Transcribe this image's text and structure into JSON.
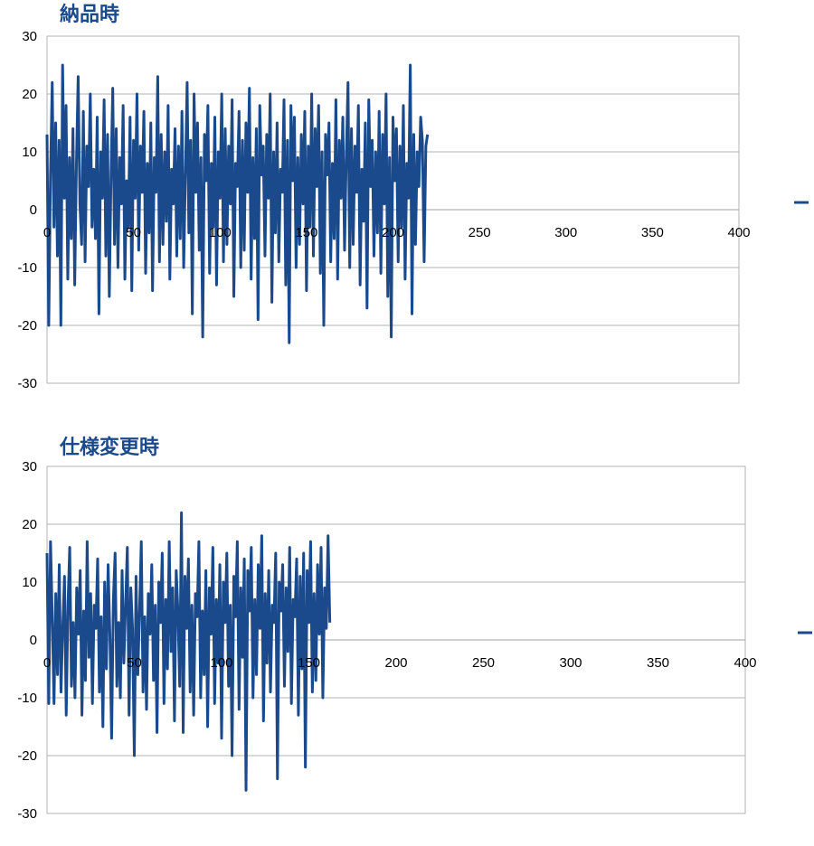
{
  "chart_data": [
    {
      "type": "line",
      "title": "納品時",
      "xlabel": "",
      "ylabel": "",
      "xlim": [
        0,
        400
      ],
      "ylim": [
        -30,
        30
      ],
      "x_ticks": [
        0,
        50,
        100,
        150,
        200,
        250,
        300,
        350,
        400
      ],
      "y_ticks": [
        30,
        20,
        10,
        0,
        -10,
        -20,
        -30
      ],
      "grid": "horizontal",
      "line_color": "#1b4a8c",
      "legend": "right (partially cropped)",
      "series": [
        {
          "x_start": 0,
          "x_step": 1,
          "values": [
            13,
            -20,
            6,
            22,
            -3,
            15,
            -8,
            12,
            -20,
            25,
            2,
            18,
            -12,
            9,
            -5,
            14,
            -13,
            8,
            23,
            1,
            -6,
            17,
            -9,
            11,
            4,
            20,
            -3,
            7,
            -5,
            16,
            -18,
            10,
            2,
            19,
            -8,
            13,
            -15,
            6,
            21,
            -6,
            14,
            -10,
            9,
            1,
            18,
            -12,
            5,
            -3,
            16,
            -14,
            12,
            2,
            20,
            -7,
            11,
            3,
            17,
            -11,
            8,
            -4,
            15,
            -14,
            9,
            3,
            23,
            -9,
            13,
            -6,
            10,
            -2,
            18,
            -12,
            7,
            1,
            14,
            -8,
            11,
            -5,
            17,
            -10,
            6,
            22,
            -4,
            12,
            -18,
            20,
            3,
            15,
            -7,
            9,
            -22,
            13,
            5,
            18,
            -11,
            8,
            -3,
            16,
            -13,
            10,
            2,
            20,
            -9,
            14,
            -6,
            11,
            1,
            19,
            -15,
            8,
            4,
            17,
            -10,
            12,
            -7,
            15,
            3,
            21,
            -12,
            9,
            -5,
            14,
            -19,
            18,
            6,
            11,
            -8,
            13,
            2,
            20,
            -16,
            10,
            -4,
            15,
            -9,
            7,
            3,
            19,
            -13,
            12,
            -23,
            18,
            5,
            16,
            -10,
            9,
            -6,
            13,
            1,
            17,
            -14,
            11,
            -3,
            20,
            -8,
            14,
            4,
            18,
            -11,
            10,
            -20,
            13,
            6,
            15,
            -9,
            8,
            -5,
            19,
            -12,
            12,
            2,
            16,
            -7,
            9,
            22,
            -10,
            14,
            -6,
            11,
            3,
            18,
            -13,
            7,
            -2,
            15,
            -17,
            19,
            4,
            12,
            -8,
            10,
            -4,
            17,
            -11,
            13,
            1,
            20,
            -15,
            9,
            -22,
            16,
            5,
            14,
            -9,
            11,
            -3,
            18,
            -12,
            8,
            2,
            25,
            -18,
            13,
            -6,
            10,
            4,
            16,
            12,
            -9,
            11,
            13
          ]
        }
      ]
    },
    {
      "type": "line",
      "title": "仕様変更時",
      "xlabel": "",
      "ylabel": "",
      "xlim": [
        0,
        400
      ],
      "ylim": [
        -30,
        30
      ],
      "x_ticks": [
        0,
        50,
        100,
        150,
        200,
        250,
        300,
        350,
        400
      ],
      "y_ticks": [
        30,
        20,
        10,
        0,
        -10,
        -20,
        -30
      ],
      "grid": "horizontal",
      "line_color": "#1b4a8c",
      "legend": "right (partially cropped)",
      "series": [
        {
          "x_start": 0,
          "x_step": 1,
          "values": [
            15,
            -11,
            17,
            4,
            -11,
            8,
            -6,
            13,
            -9,
            2,
            11,
            -13,
            6,
            16,
            -8,
            3,
            -10,
            9,
            1,
            12,
            -13,
            5,
            -7,
            17,
            -3,
            8,
            -11,
            6,
            2,
            14,
            -9,
            4,
            -15,
            10,
            -5,
            13,
            1,
            -17,
            7,
            15,
            -8,
            3,
            -10,
            12,
            -4,
            6,
            16,
            -13,
            9,
            2,
            -20,
            11,
            -6,
            5,
            17,
            -9,
            4,
            -12,
            8,
            1,
            13,
            -7,
            6,
            -16,
            10,
            3,
            15,
            -11,
            7,
            -5,
            17,
            -2,
            9,
            -14,
            12,
            5,
            -8,
            22,
            -16,
            11,
            2,
            14,
            -9,
            6,
            -13,
            8,
            4,
            17,
            -10,
            5,
            -6,
            12,
            -15,
            9,
            1,
            16,
            -11,
            7,
            -4,
            13,
            -17,
            10,
            3,
            15,
            -8,
            6,
            -20,
            11,
            4,
            17,
            -12,
            9,
            -3,
            14,
            -26,
            12,
            5,
            16,
            -10,
            7,
            -6,
            13,
            2,
            18,
            -14,
            8,
            -4,
            12,
            -9,
            6,
            3,
            15,
            -24,
            10,
            5,
            13,
            -8,
            9,
            -2,
            16,
            -11,
            7,
            4,
            14,
            -13,
            11,
            -5,
            15,
            -22,
            12,
            3,
            17,
            -9,
            8,
            -7,
            13,
            1,
            16,
            -10,
            9,
            2,
            18,
            3
          ]
        }
      ]
    }
  ]
}
